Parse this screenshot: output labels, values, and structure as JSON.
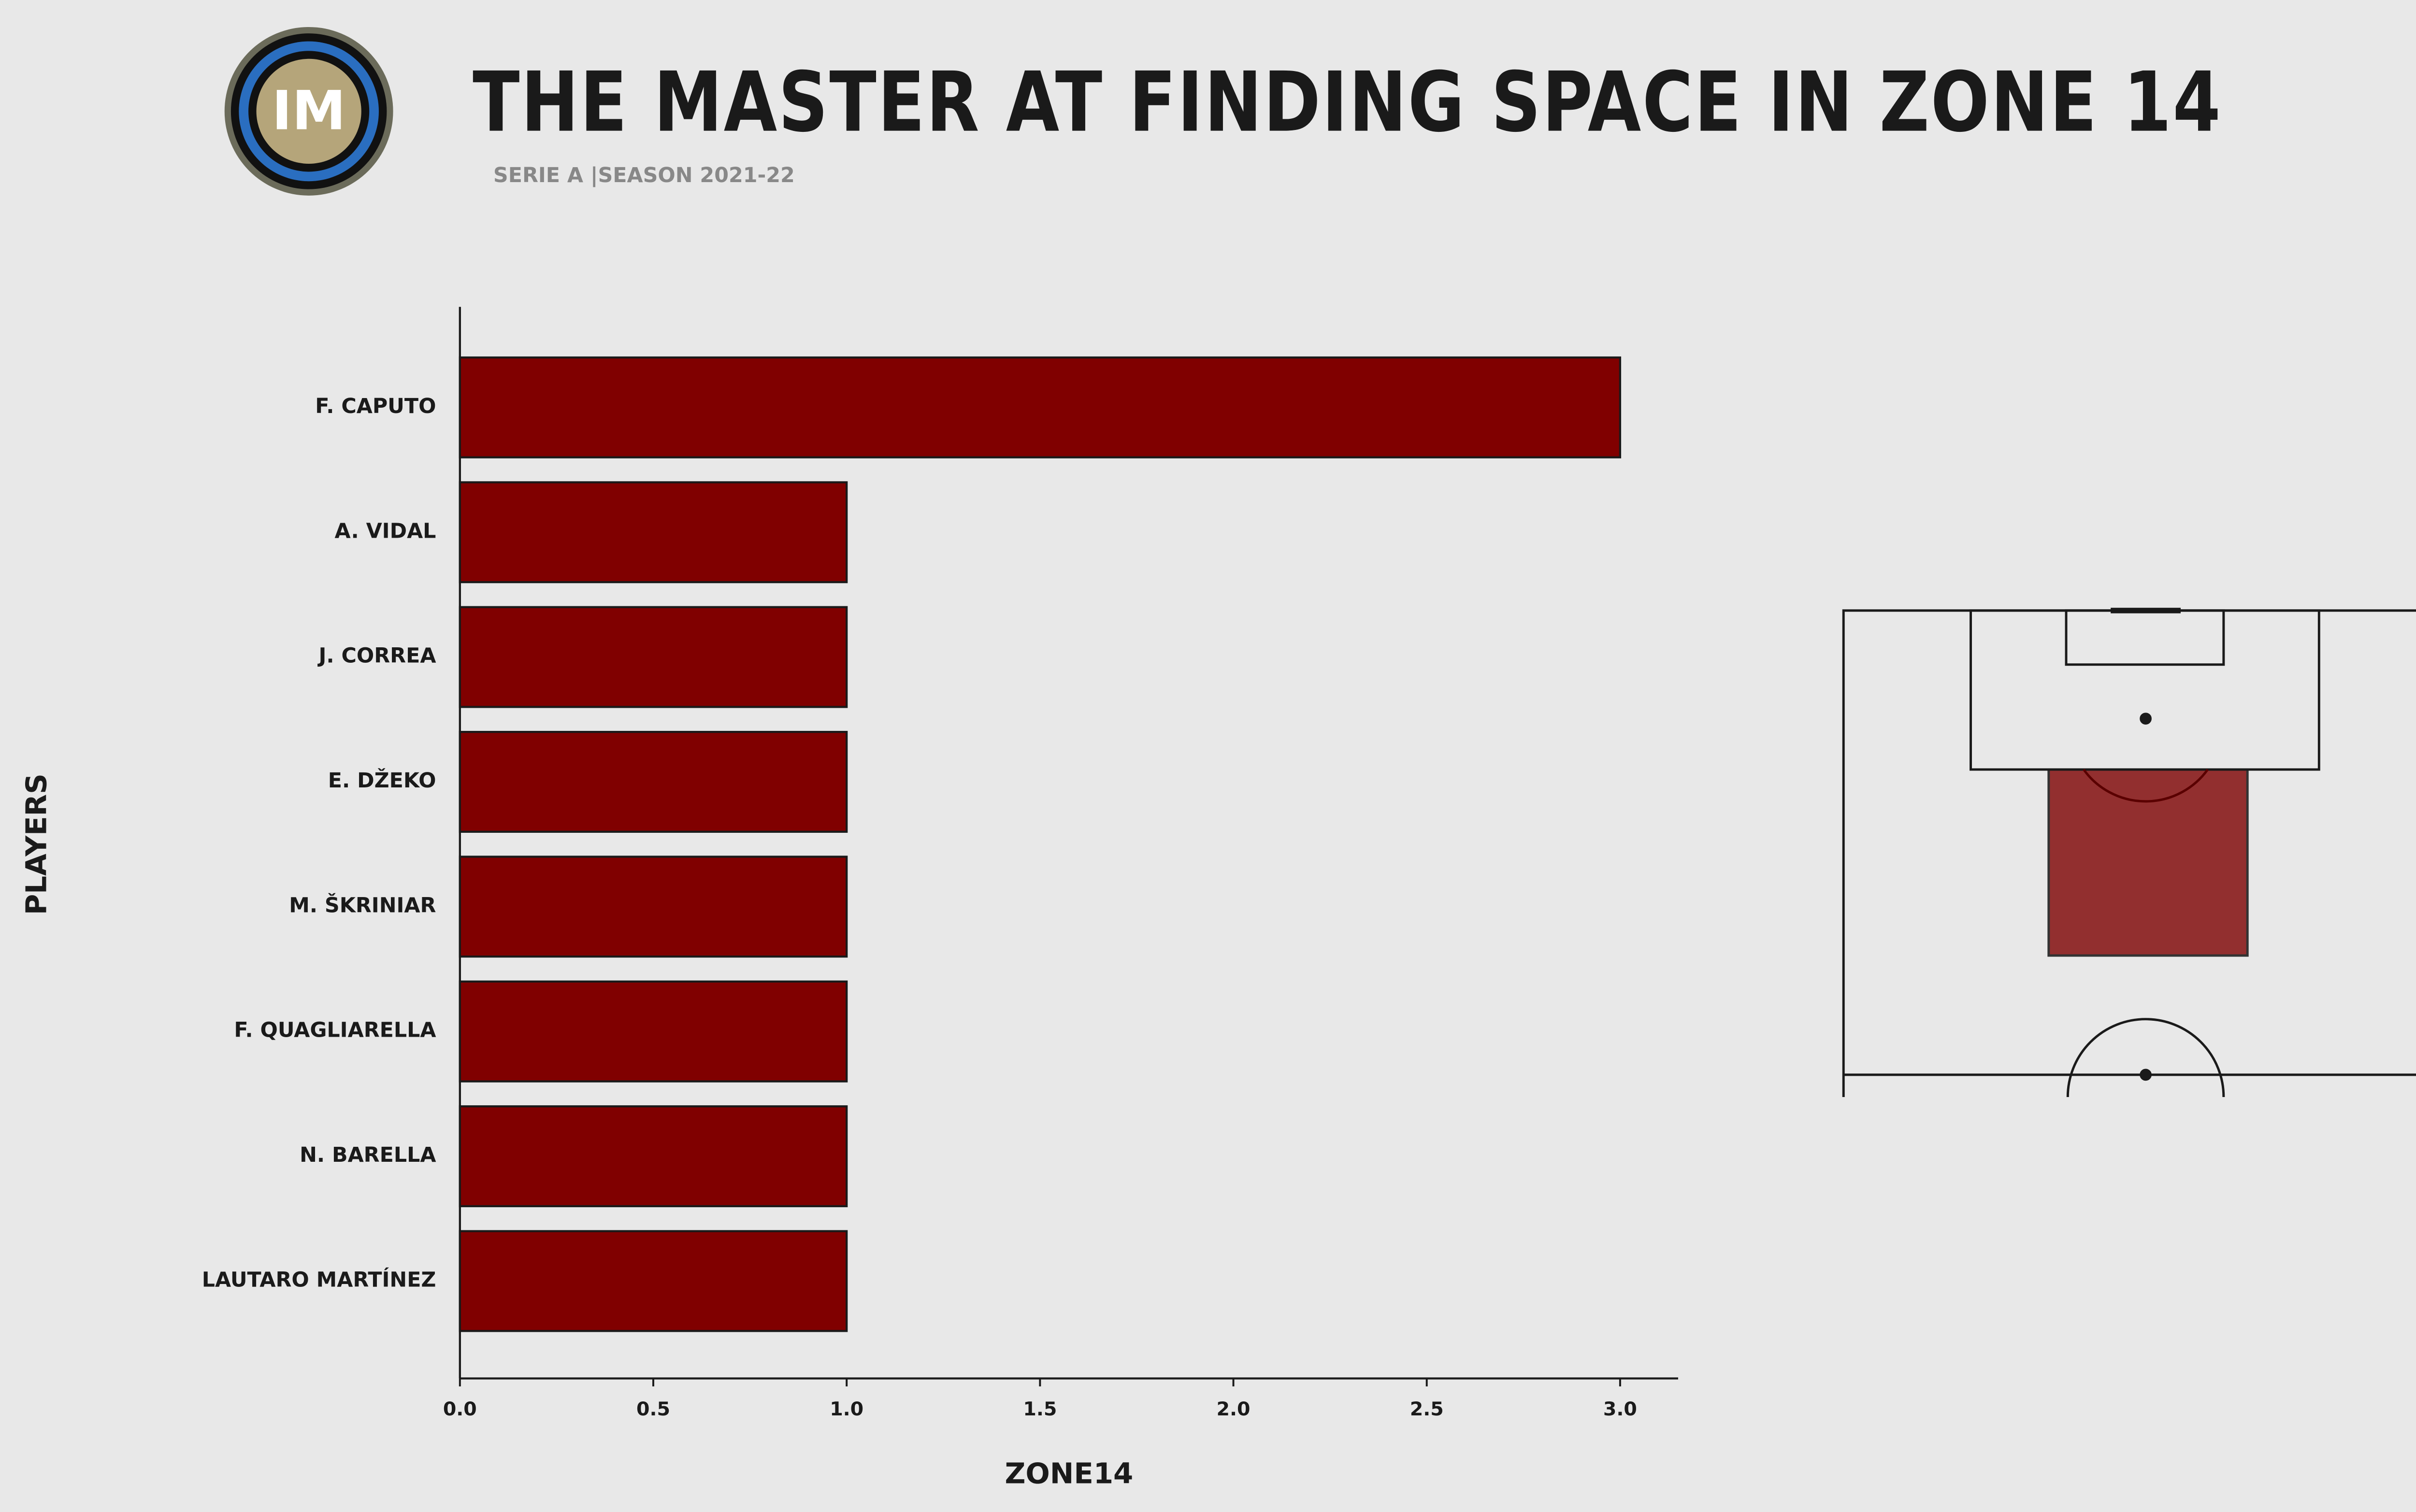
{
  "chart_data": {
    "type": "barh",
    "title": "THE MASTER AT FINDING SPACE IN ZONE 14",
    "subtitle": "SERIE A |SEASON 2021-22",
    "x_label": "ZONE14",
    "y_label": "PLAYERS",
    "categories": [
      "F. CAPUTO",
      "A. VIDAL",
      "J. CORREA",
      "E. DŽEKO",
      "M. ŠKRINIAR",
      "F. QUAGLIARELLA",
      "N. BARELLA",
      "LAUTARO MARTÍNEZ"
    ],
    "values": [
      3,
      1,
      1,
      1,
      1,
      1,
      1,
      1
    ],
    "color": "#800000",
    "xlim": [
      0,
      3.15
    ],
    "xticks": [
      {
        "value": 0,
        "label": "0.0"
      },
      0.5,
      {
        "value": 1,
        "label": "1.0"
      },
      1.5,
      {
        "value": 2,
        "label": "2.0"
      },
      2.5,
      {
        "value": 3,
        "label": "3.0"
      }
    ]
  }
}
